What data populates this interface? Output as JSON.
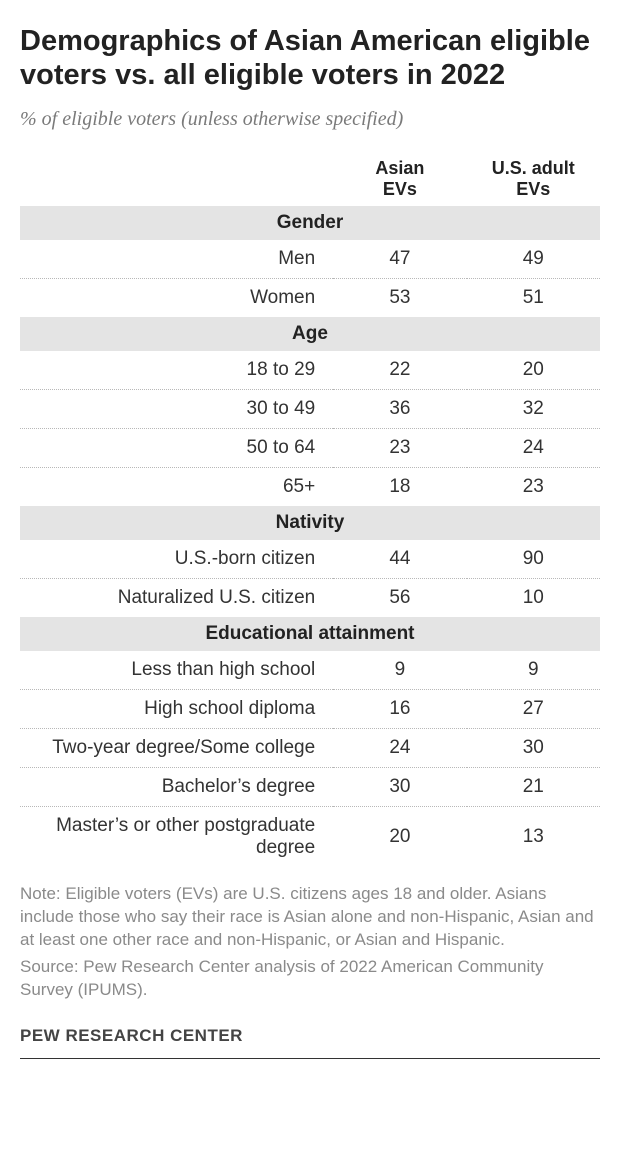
{
  "title": "Demographics of Asian American eligible voters vs. all eligible voters in 2022",
  "subtitle": "% of eligible voters (unless otherwise specified)",
  "columns": {
    "label_blank": "",
    "col1_line1": "Asian",
    "col1_line2": "EVs",
    "col2_line1": "U.S. adult",
    "col2_line2": "EVs"
  },
  "table": {
    "label_width_pct": 54,
    "val_width_pct": 23,
    "header_bg": "#e4e4e4",
    "dotted_border_color": "#b8b8b8",
    "font_family": "Arial, Helvetica, sans-serif",
    "font_size_pt": 14
  },
  "sections": [
    {
      "header": "Gender",
      "rows": [
        {
          "label": "Men",
          "c1": "47",
          "c2": "49"
        },
        {
          "label": "Women",
          "c1": "53",
          "c2": "51"
        }
      ]
    },
    {
      "header": "Age",
      "rows": [
        {
          "label": "18 to 29",
          "c1": "22",
          "c2": "20"
        },
        {
          "label": "30 to 49",
          "c1": "36",
          "c2": "32"
        },
        {
          "label": "50 to 64",
          "c1": "23",
          "c2": "24"
        },
        {
          "label": "65+",
          "c1": "18",
          "c2": "23"
        }
      ]
    },
    {
      "header": "Nativity",
      "rows": [
        {
          "label": "U.S.-born citizen",
          "c1": "44",
          "c2": "90"
        },
        {
          "label": "Naturalized U.S. citizen",
          "c1": "56",
          "c2": "10"
        }
      ]
    },
    {
      "header": "Educational attainment",
      "rows": [
        {
          "label": "Less than high school",
          "c1": "9",
          "c2": "9"
        },
        {
          "label": "High school diploma",
          "c1": "16",
          "c2": "27"
        },
        {
          "label": "Two-year degree/Some college",
          "c1": "24",
          "c2": "30"
        },
        {
          "label": "Bachelor’s degree",
          "c1": "30",
          "c2": "21"
        },
        {
          "label": "Master’s or other postgraduate degree",
          "c1": "20",
          "c2": "13"
        }
      ]
    }
  ],
  "note": "Note: Eligible voters (EVs) are U.S. citizens ages 18 and older. Asians include those who say their race is Asian alone and non-Hispanic, Asian and at least one other race and non-Hispanic, or Asian and Hispanic.",
  "source": "Source: Pew Research Center analysis of 2022 American Community Survey (IPUMS).",
  "brand": "PEW RESEARCH CENTER",
  "colors": {
    "background": "#ffffff",
    "title": "#222222",
    "subtitle": "#7a7a7a",
    "body": "#333333",
    "note": "#8a8a8a",
    "rule": "#333333"
  }
}
